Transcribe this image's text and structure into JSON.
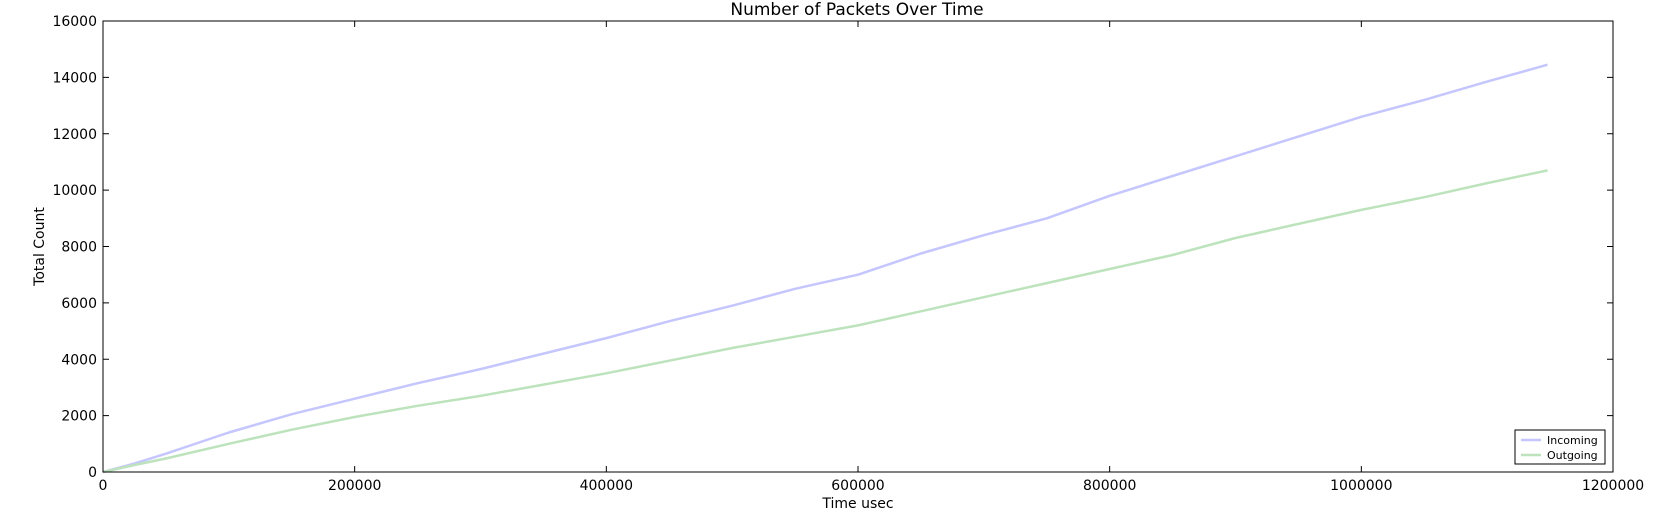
{
  "chart_data": {
    "type": "line",
    "title": "Number of Packets Over Time",
    "xlabel": "Time usec",
    "ylabel": "Total Count",
    "xlim": [
      0,
      1200000
    ],
    "ylim": [
      0,
      16000
    ],
    "xticks": [
      0,
      200000,
      400000,
      600000,
      800000,
      1000000,
      1200000
    ],
    "yticks": [
      0,
      2000,
      4000,
      6000,
      8000,
      10000,
      12000,
      14000,
      16000
    ],
    "grid": false,
    "legend_position": "lower-right",
    "series": [
      {
        "name": "Incoming",
        "color": "#c6c6ff",
        "x": [
          0,
          25000,
          50000,
          100000,
          150000,
          200000,
          250000,
          300000,
          350000,
          400000,
          450000,
          500000,
          550000,
          600000,
          650000,
          700000,
          750000,
          800000,
          850000,
          900000,
          950000,
          1000000,
          1050000,
          1100000,
          1148000
        ],
        "y": [
          0,
          300,
          650,
          1400,
          2050,
          2600,
          3150,
          3650,
          4200,
          4750,
          5350,
          5900,
          6500,
          7000,
          7750,
          8400,
          9000,
          9800,
          10500,
          11200,
          11900,
          12600,
          13200,
          13850,
          14450
        ]
      },
      {
        "name": "Outgoing",
        "color": "#bde3bd",
        "x": [
          0,
          25000,
          50000,
          100000,
          150000,
          200000,
          250000,
          300000,
          350000,
          400000,
          450000,
          500000,
          550000,
          600000,
          650000,
          700000,
          750000,
          800000,
          850000,
          900000,
          950000,
          1000000,
          1050000,
          1100000,
          1148000
        ],
        "y": [
          0,
          250,
          480,
          1000,
          1500,
          1950,
          2350,
          2700,
          3100,
          3500,
          3950,
          4400,
          4800,
          5200,
          5700,
          6200,
          6700,
          7200,
          7700,
          8300,
          8800,
          9300,
          9750,
          10250,
          10700
        ]
      }
    ]
  }
}
